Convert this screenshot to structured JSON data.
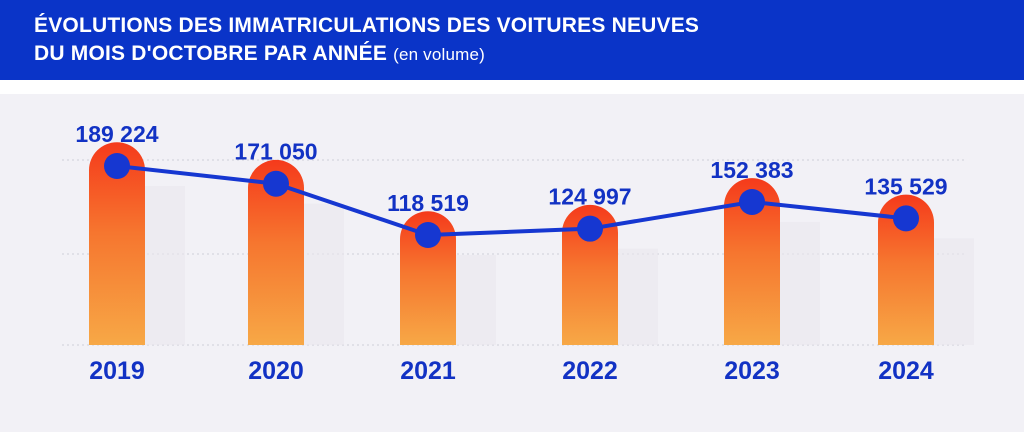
{
  "chart_data": {
    "type": "bar",
    "title_line1": "ÉVOLUTIONS DES IMMATRICULATIONS DES VOITURES NEUVES",
    "title_line2": "DU MOIS D'OCTOBRE PAR ANNÉE",
    "title_note": "(en volume)",
    "categories": [
      "2019",
      "2020",
      "2021",
      "2022",
      "2023",
      "2024"
    ],
    "values": [
      189224,
      171050,
      118519,
      124997,
      152383,
      135529
    ],
    "value_labels": [
      "189 224",
      "171 050",
      "118 519",
      "124 997",
      "152 383",
      "135 529"
    ],
    "overlay": "line",
    "ylim": [
      0,
      200000
    ],
    "grid": true,
    "colors": {
      "header_bg": "#0a34c8",
      "bar_top": "#f53a1b",
      "bar_bottom": "#f7a846",
      "line": "#1637d1",
      "label": "#1232c4"
    }
  }
}
